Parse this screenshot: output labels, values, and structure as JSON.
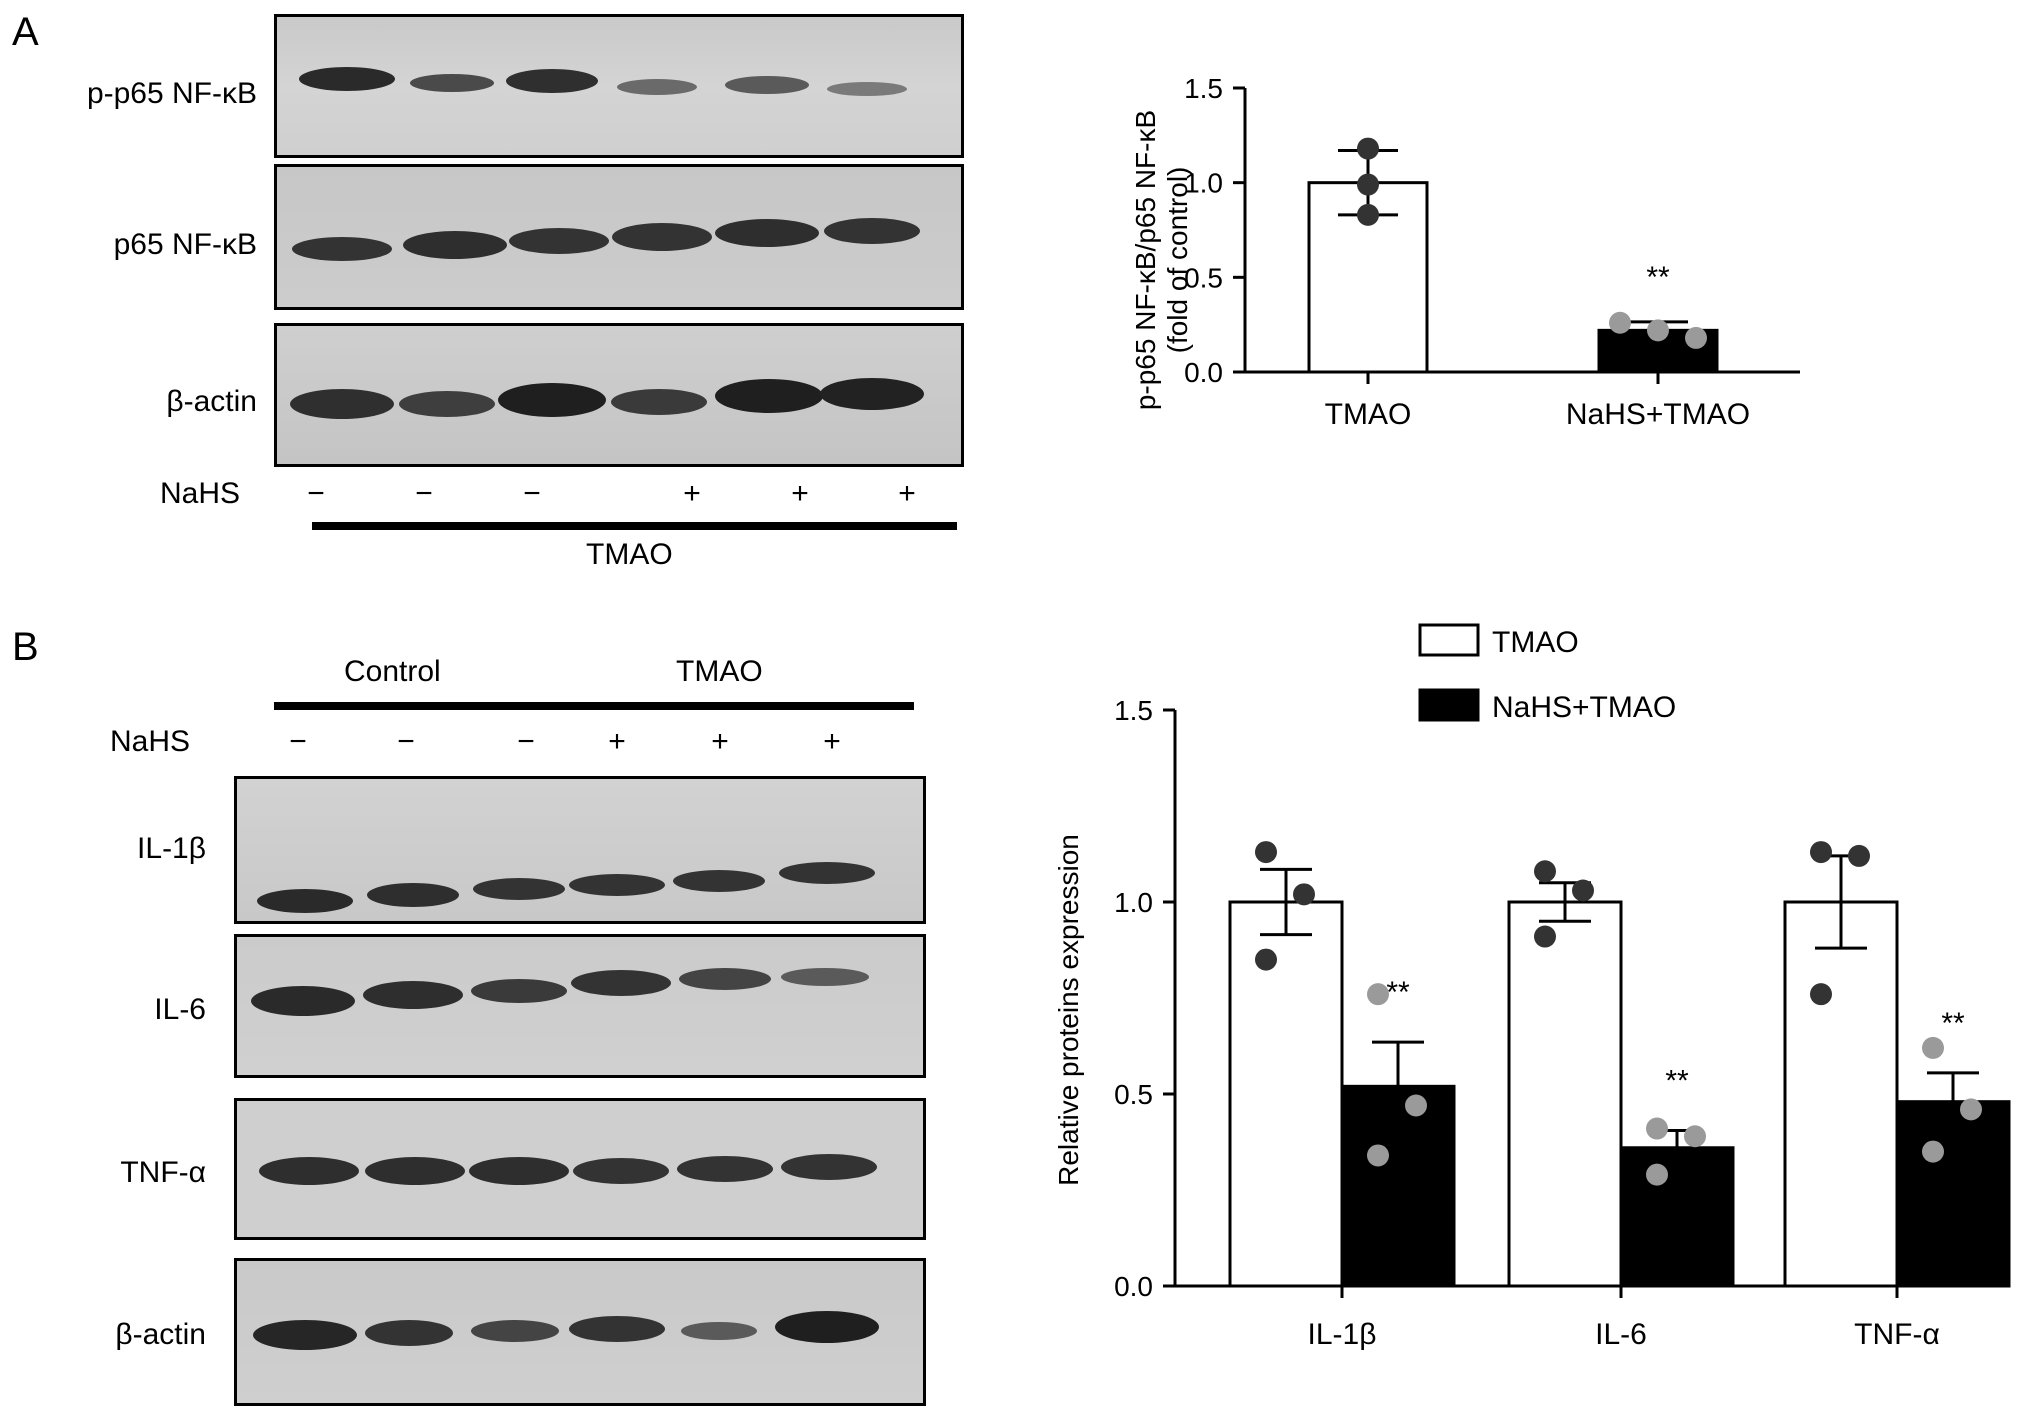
{
  "panels": {
    "a_letter": "A",
    "b_letter": "B"
  },
  "blot_a": {
    "rows": [
      "p-p65 NF-κB",
      "p65 NF-κB",
      "β-actin"
    ],
    "treatment_label": "NaHS",
    "signs": [
      "−",
      "−",
      "−",
      "+",
      "+",
      "+"
    ],
    "group_label": "TMAO"
  },
  "blot_b": {
    "groups": [
      "Control",
      "TMAO"
    ],
    "treatment_label": "NaHS",
    "signs": [
      "−",
      "−",
      "−",
      "+",
      "+",
      "+"
    ],
    "rows": [
      "IL-1β",
      "IL-6",
      "TNF-α",
      "β-actin"
    ]
  },
  "colors": {
    "bar_tmao": "#ffffff",
    "bar_nahs": "#000000",
    "dot_tmao": "#333333",
    "dot_nahs": "#9a9a9a"
  },
  "chart_data": [
    {
      "type": "bar",
      "categories": [
        "TMAO",
        "NaHS+TMAO"
      ],
      "values": [
        1.0,
        0.22
      ],
      "errors": [
        0.17,
        0.045
      ],
      "points": [
        [
          1.18,
          0.99,
          0.83
        ],
        [
          0.26,
          0.22,
          0.18
        ]
      ],
      "annotations": [
        "",
        "**"
      ],
      "ylabel": "p-p65 NF-κB/p65 NF-κB",
      "ylabel2": "(fold of control)",
      "ylim": [
        0,
        1.5
      ],
      "yticks": [
        "0.0",
        "0.5",
        "1.0",
        "1.5"
      ],
      "grid": false
    },
    {
      "type": "bar",
      "categories": [
        "IL-1β",
        "IL-6",
        "TNF-α"
      ],
      "series": [
        {
          "name": "TMAO",
          "values": [
            1.0,
            1.0,
            1.0
          ],
          "errors": [
            0.085,
            0.05,
            0.12
          ],
          "points": [
            [
              1.13,
              1.02,
              0.85
            ],
            [
              1.08,
              1.03,
              0.91
            ],
            [
              1.13,
              1.12,
              0.76
            ]
          ]
        },
        {
          "name": "NaHS+TMAO",
          "values": [
            0.52,
            0.36,
            0.48
          ],
          "errors": [
            0.115,
            0.045,
            0.075
          ],
          "points": [
            [
              0.76,
              0.47,
              0.34
            ],
            [
              0.41,
              0.39,
              0.29
            ],
            [
              0.62,
              0.46,
              0.35
            ]
          ]
        }
      ],
      "annotations": [
        "**",
        "**",
        "**"
      ],
      "ylabel": "Relative proteins expression",
      "ylim": [
        0,
        1.5
      ],
      "yticks": [
        "0.0",
        "0.5",
        "1.0",
        "1.5"
      ],
      "legend_position": "top",
      "grid": false
    }
  ]
}
